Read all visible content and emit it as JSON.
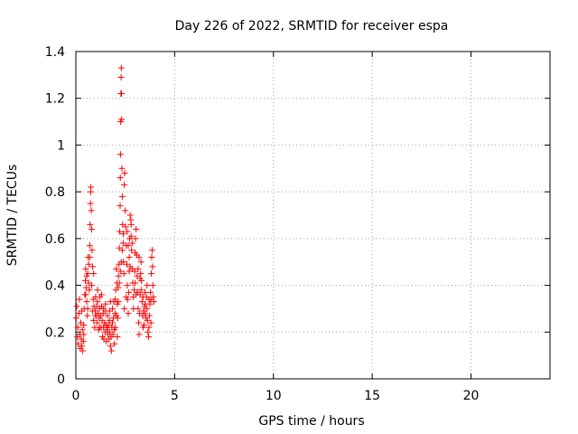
{
  "chart_data": {
    "type": "scatter",
    "title": "Day 226 of 2022, SRMTID for receiver espa",
    "xlabel": "GPS time / hours",
    "ylabel": "SRMTID / TECUs",
    "xlim": [
      0,
      24
    ],
    "ylim": [
      0,
      1.4
    ],
    "xticks": [
      "0",
      "5",
      "10",
      "15",
      "20"
    ],
    "yticks": [
      "0",
      "0.2",
      "0.4",
      "0.6",
      "0.8",
      "1",
      "1.2",
      "1.4"
    ],
    "grid": true,
    "legend": "none",
    "marker": "plus",
    "color": "#ff0000",
    "points": [
      [
        0.02,
        0.26
      ],
      [
        0.05,
        0.31
      ],
      [
        0.08,
        0.18
      ],
      [
        0.1,
        0.22
      ],
      [
        0.12,
        0.15
      ],
      [
        0.15,
        0.28
      ],
      [
        0.18,
        0.34
      ],
      [
        0.2,
        0.19
      ],
      [
        0.22,
        0.13
      ],
      [
        0.25,
        0.24
      ],
      [
        0.28,
        0.17
      ],
      [
        0.3,
        0.29
      ],
      [
        0.33,
        0.21
      ],
      [
        0.35,
        0.12
      ],
      [
        0.38,
        0.16
      ],
      [
        0.4,
        0.23
      ],
      [
        0.42,
        0.3
      ],
      [
        0.45,
        0.36
      ],
      [
        0.48,
        0.42
      ],
      [
        0.5,
        0.47
      ],
      [
        0.52,
        0.39
      ],
      [
        0.55,
        0.33
      ],
      [
        0.58,
        0.27
      ],
      [
        0.6,
        0.45
      ],
      [
        0.62,
        0.52
      ],
      [
        0.65,
        0.41
      ],
      [
        0.68,
        0.38
      ],
      [
        0.7,
        0.57
      ],
      [
        0.72,
        0.66
      ],
      [
        0.74,
        0.75
      ],
      [
        0.75,
        0.8
      ],
      [
        0.76,
        0.82
      ],
      [
        0.78,
        0.72
      ],
      [
        0.8,
        0.64
      ],
      [
        0.82,
        0.55
      ],
      [
        0.85,
        0.48
      ],
      [
        0.88,
        0.34
      ],
      [
        0.9,
        0.25
      ],
      [
        0.92,
        0.31
      ],
      [
        0.95,
        0.22
      ],
      [
        0.98,
        0.29
      ],
      [
        1.0,
        0.35
      ],
      [
        1.02,
        0.27
      ],
      [
        1.05,
        0.31
      ],
      [
        1.08,
        0.24
      ],
      [
        1.1,
        0.33
      ],
      [
        1.12,
        0.28
      ],
      [
        1.15,
        0.21
      ],
      [
        1.18,
        0.26
      ],
      [
        1.2,
        0.3
      ],
      [
        1.22,
        0.35
      ],
      [
        1.25,
        0.27
      ],
      [
        1.28,
        0.22
      ],
      [
        1.3,
        0.31
      ],
      [
        1.33,
        0.25
      ],
      [
        1.35,
        0.18
      ],
      [
        1.38,
        0.28
      ],
      [
        1.4,
        0.22
      ],
      [
        1.42,
        0.17
      ],
      [
        1.45,
        0.24
      ],
      [
        1.48,
        0.2
      ],
      [
        1.5,
        0.29
      ],
      [
        1.52,
        0.23
      ],
      [
        1.55,
        0.16
      ],
      [
        1.58,
        0.21
      ],
      [
        1.6,
        0.27
      ],
      [
        1.62,
        0.19
      ],
      [
        1.65,
        0.23
      ],
      [
        1.68,
        0.17
      ],
      [
        1.7,
        0.25
      ],
      [
        1.72,
        0.2
      ],
      [
        1.75,
        0.14
      ],
      [
        1.78,
        0.18
      ],
      [
        1.8,
        0.12
      ],
      [
        1.82,
        0.22
      ],
      [
        1.85,
        0.3
      ],
      [
        1.88,
        0.19
      ],
      [
        1.9,
        0.26
      ],
      [
        1.92,
        0.33
      ],
      [
        1.95,
        0.21
      ],
      [
        1.98,
        0.28
      ],
      [
        2.0,
        0.34
      ],
      [
        2.02,
        0.38
      ],
      [
        2.05,
        0.47
      ],
      [
        2.08,
        0.41
      ],
      [
        2.1,
        0.32
      ],
      [
        2.12,
        0.26
      ],
      [
        2.14,
        0.39
      ],
      [
        2.16,
        0.44
      ],
      [
        2.18,
        0.49
      ],
      [
        2.2,
        0.56
      ],
      [
        2.22,
        0.63
      ],
      [
        2.24,
        0.74
      ],
      [
        2.25,
        0.86
      ],
      [
        2.26,
        0.96
      ],
      [
        2.27,
        1.1
      ],
      [
        2.28,
        1.22
      ],
      [
        2.29,
        1.29
      ],
      [
        2.3,
        1.33
      ],
      [
        2.31,
        1.22
      ],
      [
        2.32,
        1.11
      ],
      [
        2.33,
        0.9
      ],
      [
        2.35,
        0.78
      ],
      [
        2.37,
        0.66
      ],
      [
        2.39,
        0.58
      ],
      [
        2.41,
        0.5
      ],
      [
        2.43,
        0.45
      ],
      [
        2.45,
        0.83
      ],
      [
        2.47,
        0.88
      ],
      [
        2.5,
        0.72
      ],
      [
        2.52,
        0.65
      ],
      [
        2.55,
        0.57
      ],
      [
        2.58,
        0.49
      ],
      [
        2.6,
        0.4
      ],
      [
        2.62,
        0.34
      ],
      [
        2.65,
        0.28
      ],
      [
        2.68,
        0.37
      ],
      [
        2.7,
        0.46
      ],
      [
        2.72,
        0.6
      ],
      [
        2.75,
        0.7
      ],
      [
        2.78,
        0.68
      ],
      [
        2.8,
        0.61
      ],
      [
        2.82,
        0.55
      ],
      [
        2.85,
        0.47
      ],
      [
        2.88,
        0.41
      ],
      [
        2.9,
        0.35
      ],
      [
        2.92,
        0.3
      ],
      [
        2.95,
        0.38
      ],
      [
        2.98,
        0.46
      ],
      [
        3.0,
        0.54
      ],
      [
        3.02,
        0.6
      ],
      [
        3.05,
        0.64
      ],
      [
        3.08,
        0.53
      ],
      [
        3.1,
        0.44
      ],
      [
        3.12,
        0.37
      ],
      [
        3.15,
        0.3
      ],
      [
        3.18,
        0.24
      ],
      [
        3.2,
        0.19
      ],
      [
        3.22,
        0.28
      ],
      [
        3.25,
        0.36
      ],
      [
        3.28,
        0.45
      ],
      [
        3.3,
        0.5
      ],
      [
        3.32,
        0.42
      ],
      [
        3.35,
        0.33
      ],
      [
        3.38,
        0.27
      ],
      [
        3.4,
        0.35
      ],
      [
        3.42,
        0.29
      ],
      [
        3.45,
        0.23
      ],
      [
        3.48,
        0.31
      ],
      [
        3.5,
        0.37
      ],
      [
        3.52,
        0.32
      ],
      [
        3.55,
        0.26
      ],
      [
        3.58,
        0.35
      ],
      [
        3.6,
        0.3
      ],
      [
        3.62,
        0.25
      ],
      [
        3.65,
        0.2
      ],
      [
        3.68,
        0.18
      ],
      [
        3.7,
        0.22
      ],
      [
        3.72,
        0.27
      ],
      [
        3.75,
        0.32
      ],
      [
        3.78,
        0.37
      ],
      [
        3.8,
        0.34
      ],
      [
        3.82,
        0.45
      ],
      [
        3.84,
        0.52
      ],
      [
        3.86,
        0.55
      ],
      [
        3.88,
        0.48
      ],
      [
        3.9,
        0.4
      ],
      [
        3.92,
        0.35
      ],
      [
        3.95,
        0.33
      ],
      [
        0.6,
        0.3
      ],
      [
        0.9,
        0.45
      ],
      [
        1.1,
        0.38
      ],
      [
        1.3,
        0.36
      ],
      [
        1.5,
        0.32
      ],
      [
        1.7,
        0.29
      ],
      [
        2.0,
        0.22
      ],
      [
        2.1,
        0.18
      ],
      [
        2.45,
        0.3
      ],
      [
        2.55,
        0.35
      ],
      [
        2.6,
        0.63
      ],
      [
        2.65,
        0.57
      ],
      [
        2.7,
        0.52
      ],
      [
        2.75,
        0.48
      ],
      [
        2.8,
        0.66
      ],
      [
        2.85,
        0.58
      ],
      [
        3.0,
        0.41
      ],
      [
        3.05,
        0.36
      ],
      [
        3.15,
        0.47
      ],
      [
        3.2,
        0.52
      ],
      [
        3.25,
        0.43
      ],
      [
        3.3,
        0.38
      ],
      [
        3.4,
        0.22
      ],
      [
        3.5,
        0.28
      ],
      [
        3.6,
        0.4
      ],
      [
        3.7,
        0.34
      ],
      [
        3.8,
        0.24
      ],
      [
        0.3,
        0.14
      ],
      [
        0.4,
        0.19
      ],
      [
        0.5,
        0.36
      ],
      [
        0.55,
        0.44
      ],
      [
        0.65,
        0.49
      ],
      [
        0.7,
        0.52
      ],
      [
        0.8,
        0.4
      ],
      [
        0.85,
        0.29
      ],
      [
        1.0,
        0.27
      ],
      [
        1.2,
        0.22
      ],
      [
        1.4,
        0.3
      ],
      [
        1.6,
        0.22
      ],
      [
        1.75,
        0.33
      ],
      [
        1.85,
        0.24
      ],
      [
        1.95,
        0.15
      ],
      [
        2.05,
        0.27
      ],
      [
        2.15,
        0.33
      ],
      [
        2.2,
        0.41
      ],
      [
        2.25,
        0.46
      ],
      [
        2.3,
        0.5
      ],
      [
        2.35,
        0.55
      ],
      [
        2.4,
        0.62
      ]
    ]
  }
}
